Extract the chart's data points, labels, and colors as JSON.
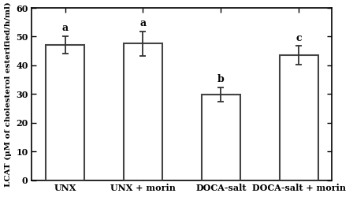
{
  "categories": [
    "UNX",
    "UNX + morin",
    "DOCA-salt",
    "DOCA-salt + morin"
  ],
  "values": [
    47.2,
    47.6,
    29.9,
    43.5
  ],
  "errors": [
    3.0,
    4.2,
    2.5,
    3.2
  ],
  "letters": [
    "a",
    "a",
    "b",
    "c"
  ],
  "ylabel": "LCAT (μM of cholesterol esterified/h/ml)",
  "ylim": [
    0,
    60
  ],
  "yticks": [
    0,
    10,
    20,
    30,
    40,
    50,
    60
  ],
  "bar_color": "#ffffff",
  "bar_edgecolor": "#444444",
  "bar_linewidth": 1.5,
  "error_capsize": 3,
  "error_color": "#333333",
  "letter_fontsize": 9,
  "ylabel_fontsize": 7.5,
  "tick_fontsize": 8,
  "xlabel_fontsize": 8,
  "bar_width": 0.5,
  "figsize": [
    4.48,
    2.5
  ],
  "dpi": 100
}
